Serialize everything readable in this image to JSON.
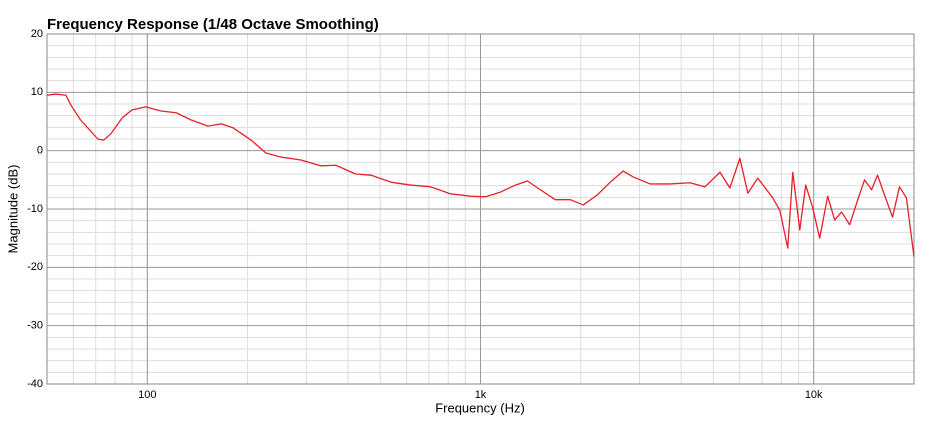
{
  "chart_data": {
    "type": "line",
    "title": "Frequency Response (1/48 Octave Smoothing)",
    "xlabel": "Frequency (Hz)",
    "ylabel": "Magnitude (dB)",
    "xscale": "log",
    "grid": true,
    "minor_grid": true,
    "xlim": [
      50,
      20000
    ],
    "ylim": [
      -40,
      20
    ],
    "xticks": [
      100,
      {
        "value": 1000,
        "label": "1k"
      },
      {
        "value": 10000,
        "label": "10k"
      }
    ],
    "yticks": [
      20,
      10,
      0,
      -10,
      -20,
      -30,
      -40
    ],
    "x": [
      50,
      53,
      57,
      59,
      63,
      68,
      71,
      74,
      78,
      84,
      90,
      99,
      110,
      122,
      135,
      152,
      167,
      181,
      205,
      227,
      252,
      289,
      332,
      368,
      422,
      469,
      538,
      617,
      709,
      813,
      933,
      1035,
      1148,
      1273,
      1383,
      1512,
      1677,
      1860,
      2034,
      2240,
      2451,
      2680,
      2872,
      3228,
      3706,
      4254,
      4718,
      5233,
      5605,
      6003,
      6345,
      6796,
      7537,
      7911,
      8360,
      8653,
      9082,
      9464,
      9931,
      10423,
      11015,
      11558,
      12127,
      12820,
      13545,
      14213,
      14918,
      15548,
      16316,
      17241,
      18091,
      18981,
      20000
    ],
    "series": [
      {
        "name": "Magnitude",
        "color": "#e8202a",
        "values": [
          9.5,
          9.7,
          9.5,
          7.8,
          5.3,
          3.2,
          2.0,
          1.8,
          3.0,
          5.6,
          7.0,
          7.5,
          6.8,
          6.5,
          5.3,
          4.2,
          4.6,
          3.9,
          1.8,
          -0.4,
          -1.1,
          -1.6,
          -2.6,
          -2.5,
          -4.0,
          -4.2,
          -5.4,
          -5.9,
          -6.2,
          -7.4,
          -7.8,
          -7.9,
          -7.1,
          -5.9,
          -5.2,
          -6.7,
          -8.4,
          -8.4,
          -9.3,
          -7.6,
          -5.4,
          -3.5,
          -4.5,
          -5.7,
          -5.7,
          -5.5,
          -6.2,
          -3.7,
          -6.4,
          -1.3,
          -7.3,
          -4.7,
          -8.1,
          -10.2,
          -16.7,
          -3.7,
          -13.6,
          -5.9,
          -9.8,
          -15.0,
          -7.8,
          -11.9,
          -10.5,
          -12.7,
          -8.5,
          -5.0,
          -6.7,
          -4.2,
          -7.6,
          -11.4,
          -6.2,
          -8.1,
          -18.2
        ]
      }
    ]
  }
}
